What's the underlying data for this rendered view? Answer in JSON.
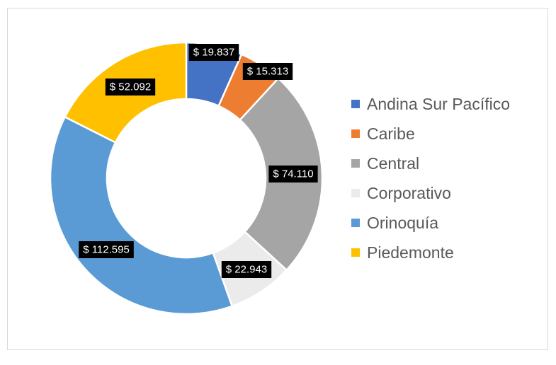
{
  "chart_data": {
    "type": "pie",
    "variant": "donut",
    "legend_position": "right",
    "label_prefix": "$ ",
    "categories": [
      "Andina Sur Pacífico",
      "Caribe",
      "Central",
      "Corporativo",
      "Orinoquía",
      "Piedemonte"
    ],
    "values": [
      19837,
      15313,
      74110,
      22943,
      112595,
      52092
    ],
    "data_labels": [
      "$ 19.837",
      "$ 15.313",
      "$ 74.110",
      "$ 22.943",
      "$ 112.595",
      "$ 52.092"
    ],
    "colors": [
      "#4472C4",
      "#ED7D31",
      "#A5A5A5",
      "#EBEBEB",
      "#5B9BD5",
      "#FFC000"
    ]
  }
}
